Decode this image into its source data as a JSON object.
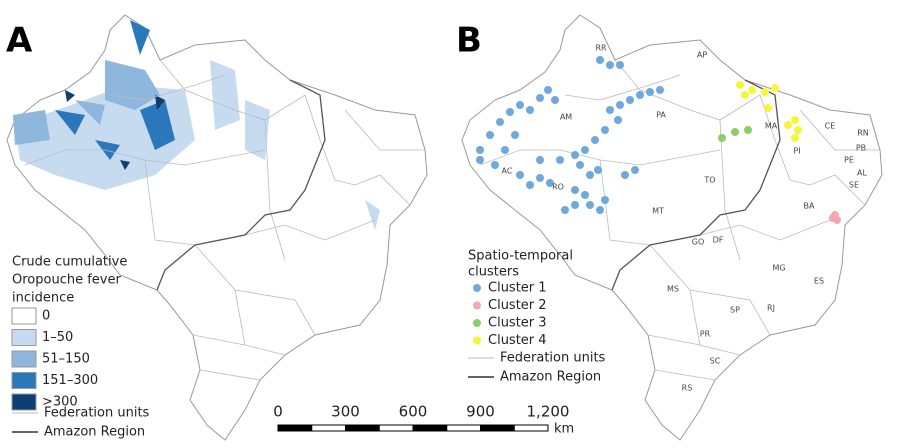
{
  "panel_a": {
    "label": "A",
    "legend": {
      "title": [
        "Crude cumulative",
        "Oropouche fever",
        "incidence"
      ],
      "items": [
        {
          "label": "0",
          "color": "#ffffff"
        },
        {
          "label": "1–50",
          "color": "#c6dbef"
        },
        {
          "label": "51–150",
          "color": "#8fb6dc"
        },
        {
          "label": "151–300",
          "color": "#2a78bb"
        },
        {
          "label": ">300",
          "color": "#0b3f73"
        }
      ],
      "boundaries": [
        "Federation units",
        "Amazon Region"
      ]
    }
  },
  "panel_b": {
    "label": "B",
    "state_labels": [
      "RR",
      "AP",
      "AM",
      "PA",
      "MA",
      "CE",
      "RN",
      "PB",
      "PE",
      "AL",
      "SE",
      "PI",
      "AC",
      "RO",
      "TO",
      "MT",
      "BA",
      "GO",
      "DF",
      "MG",
      "ES",
      "MS",
      "SP",
      "RJ",
      "PR",
      "SC",
      "RS"
    ],
    "legend": {
      "title": [
        "Spatio-temporal",
        "clusters"
      ],
      "items": [
        {
          "label": "Cluster 1",
          "color": "#6fa8dc"
        },
        {
          "label": "Cluster 2",
          "color": "#f4a6b4"
        },
        {
          "label": "Cluster 3",
          "color": "#8ccf6a"
        },
        {
          "label": "Cluster 4",
          "color": "#f5f53a"
        }
      ],
      "boundaries": [
        "Federation units",
        "Amazon Region"
      ]
    }
  },
  "scale_bar": {
    "ticks": [
      "0",
      "300",
      "600",
      "900",
      "1,200"
    ],
    "unit": "km"
  }
}
